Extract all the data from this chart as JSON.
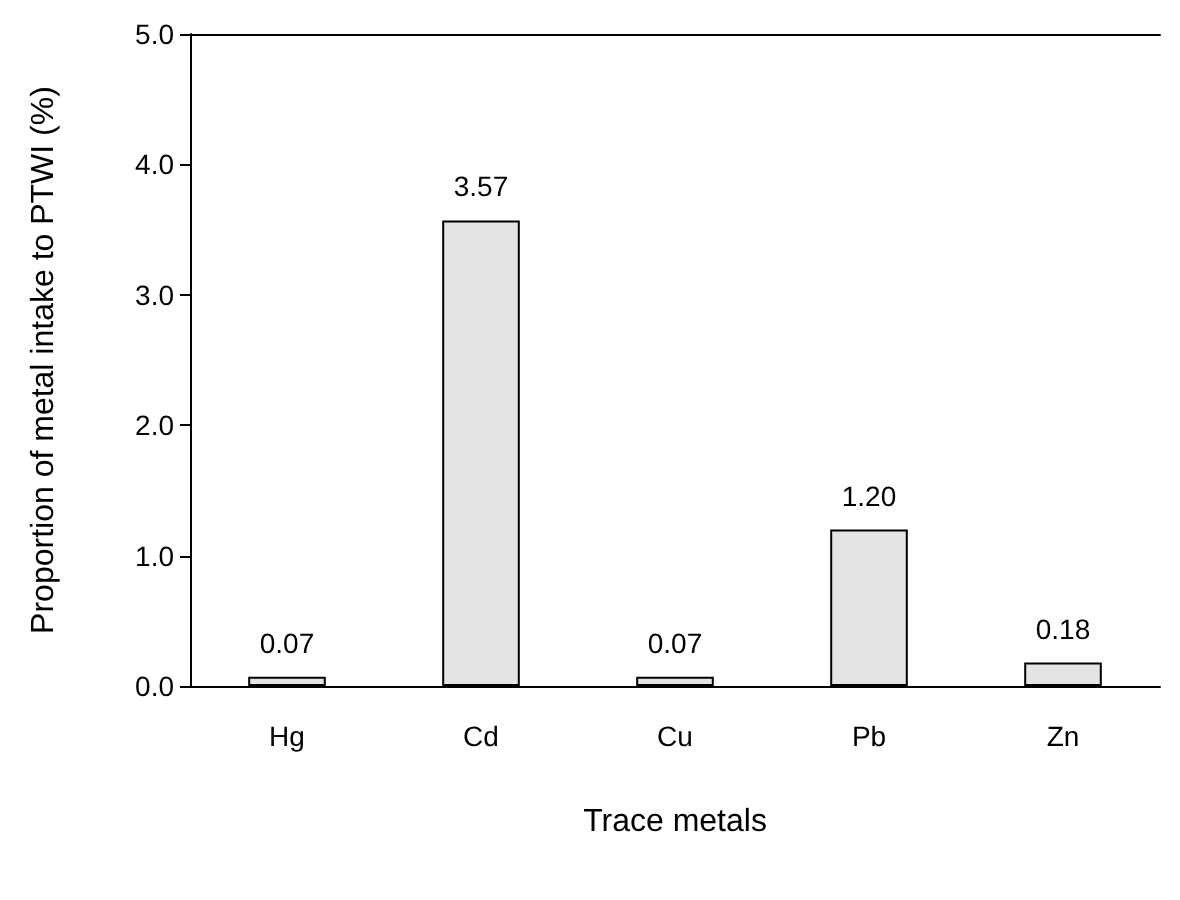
{
  "chart_data": {
    "type": "bar",
    "xlabel": "Trace metals",
    "ylabel": "Proportion of metal intake to PTWI (%)",
    "categories": [
      "Hg",
      "Cd",
      "Cu",
      "Pb",
      "Zn"
    ],
    "values": [
      0.07,
      3.57,
      0.07,
      1.2,
      0.18
    ],
    "value_labels": [
      "0.07",
      "3.57",
      "0.07",
      "1.20",
      "0.18"
    ],
    "color": "#e4e4e4",
    "ylim": [
      0,
      5
    ],
    "yticks": [
      {
        "value": 0,
        "label": "0.0"
      },
      {
        "value": 1,
        "label": "1.0"
      },
      {
        "value": 2,
        "label": "2.0"
      },
      {
        "value": 3,
        "label": "3.0"
      },
      {
        "value": 4,
        "label": "4.0"
      },
      {
        "value": 5,
        "label": "5.0"
      }
    ],
    "grid": false
  }
}
